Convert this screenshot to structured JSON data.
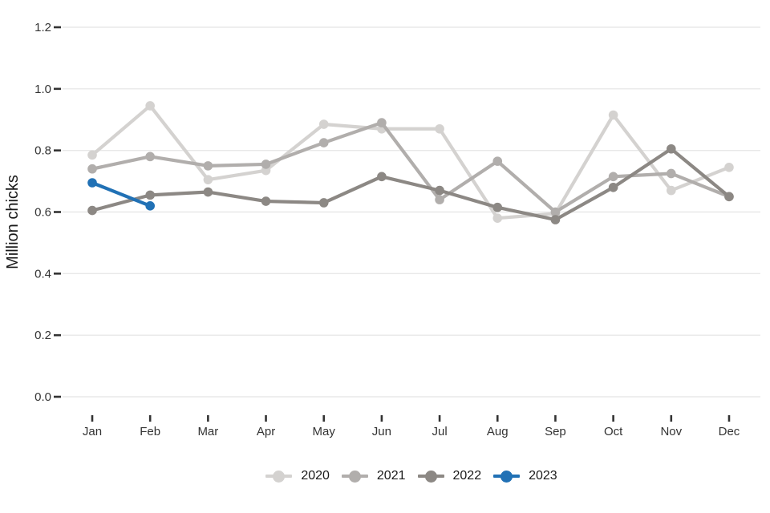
{
  "chart_data": {
    "type": "line",
    "title": "",
    "xlabel": "",
    "ylabel": "Million chicks",
    "categories": [
      "Jan",
      "Feb",
      "Mar",
      "Apr",
      "May",
      "Jun",
      "Jul",
      "Aug",
      "Sep",
      "Oct",
      "Nov",
      "Dec"
    ],
    "ylim": [
      0.0,
      1.2
    ],
    "yticks": [
      0.0,
      0.2,
      0.4,
      0.6,
      0.8,
      1.0,
      1.2
    ],
    "ytick_labels": [
      "0.0",
      "0.2",
      "0.4",
      "0.6",
      "0.8",
      "1.0",
      "1.2"
    ],
    "grid": "horizontal-major-only",
    "legend_position": "bottom-center",
    "marker": "circle",
    "series": [
      {
        "name": "2020",
        "color": "#d4d2d0",
        "values": [
          0.785,
          0.945,
          0.705,
          0.735,
          0.885,
          0.87,
          0.87,
          0.58,
          0.595,
          0.915,
          0.67,
          0.745
        ]
      },
      {
        "name": "2021",
        "color": "#b1aeac",
        "values": [
          0.74,
          0.78,
          0.75,
          0.755,
          0.825,
          0.89,
          0.64,
          0.765,
          0.6,
          0.715,
          0.725,
          0.65
        ]
      },
      {
        "name": "2022",
        "color": "#8c8884",
        "values": [
          0.605,
          0.655,
          0.665,
          0.635,
          0.63,
          0.715,
          0.67,
          0.615,
          0.575,
          0.68,
          0.805,
          0.65
        ]
      },
      {
        "name": "2023",
        "color": "#2171b5",
        "values": [
          0.695,
          0.62
        ]
      }
    ],
    "colors": {
      "gridline": "#e8e8e8",
      "tick": "#333333",
      "tick_label": "#333333",
      "axis_title": "#1a1a1a",
      "background": "#ffffff"
    }
  }
}
